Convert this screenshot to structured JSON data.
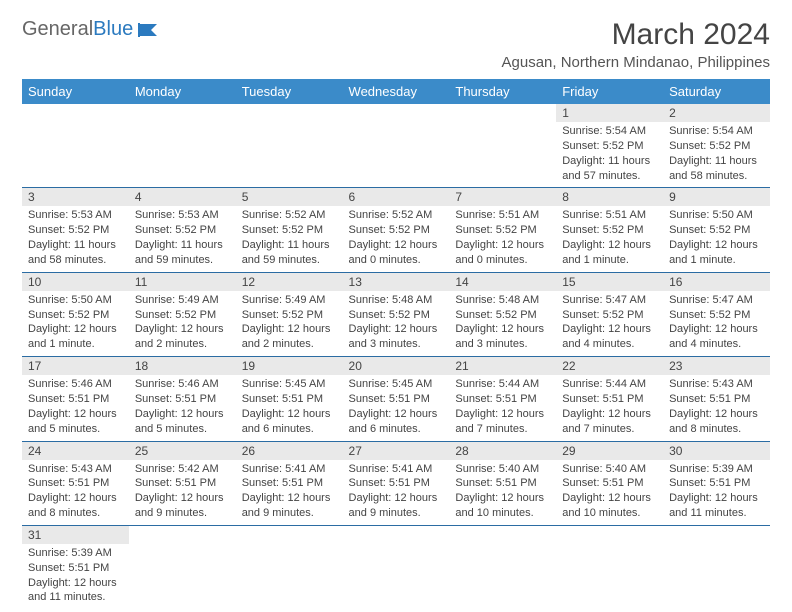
{
  "logo": {
    "general": "General",
    "blue": "Blue"
  },
  "title": "March 2024",
  "location": "Agusan, Northern Mindanao, Philippines",
  "dayHeaders": [
    "Sunday",
    "Monday",
    "Tuesday",
    "Wednesday",
    "Thursday",
    "Friday",
    "Saturday"
  ],
  "colors": {
    "headerBg": "#3b8bc9",
    "headerText": "#ffffff",
    "dayNumBg": "#e9e9e9",
    "borderColor": "#2b6ca3",
    "textColor": "#444444",
    "logoBlue": "#2b7abf"
  },
  "weeks": [
    [
      null,
      null,
      null,
      null,
      null,
      {
        "n": "1",
        "sr": "5:54 AM",
        "ss": "5:52 PM",
        "dl": "11 hours and 57 minutes."
      },
      {
        "n": "2",
        "sr": "5:54 AM",
        "ss": "5:52 PM",
        "dl": "11 hours and 58 minutes."
      }
    ],
    [
      {
        "n": "3",
        "sr": "5:53 AM",
        "ss": "5:52 PM",
        "dl": "11 hours and 58 minutes."
      },
      {
        "n": "4",
        "sr": "5:53 AM",
        "ss": "5:52 PM",
        "dl": "11 hours and 59 minutes."
      },
      {
        "n": "5",
        "sr": "5:52 AM",
        "ss": "5:52 PM",
        "dl": "11 hours and 59 minutes."
      },
      {
        "n": "6",
        "sr": "5:52 AM",
        "ss": "5:52 PM",
        "dl": "12 hours and 0 minutes."
      },
      {
        "n": "7",
        "sr": "5:51 AM",
        "ss": "5:52 PM",
        "dl": "12 hours and 0 minutes."
      },
      {
        "n": "8",
        "sr": "5:51 AM",
        "ss": "5:52 PM",
        "dl": "12 hours and 1 minute."
      },
      {
        "n": "9",
        "sr": "5:50 AM",
        "ss": "5:52 PM",
        "dl": "12 hours and 1 minute."
      }
    ],
    [
      {
        "n": "10",
        "sr": "5:50 AM",
        "ss": "5:52 PM",
        "dl": "12 hours and 1 minute."
      },
      {
        "n": "11",
        "sr": "5:49 AM",
        "ss": "5:52 PM",
        "dl": "12 hours and 2 minutes."
      },
      {
        "n": "12",
        "sr": "5:49 AM",
        "ss": "5:52 PM",
        "dl": "12 hours and 2 minutes."
      },
      {
        "n": "13",
        "sr": "5:48 AM",
        "ss": "5:52 PM",
        "dl": "12 hours and 3 minutes."
      },
      {
        "n": "14",
        "sr": "5:48 AM",
        "ss": "5:52 PM",
        "dl": "12 hours and 3 minutes."
      },
      {
        "n": "15",
        "sr": "5:47 AM",
        "ss": "5:52 PM",
        "dl": "12 hours and 4 minutes."
      },
      {
        "n": "16",
        "sr": "5:47 AM",
        "ss": "5:52 PM",
        "dl": "12 hours and 4 minutes."
      }
    ],
    [
      {
        "n": "17",
        "sr": "5:46 AM",
        "ss": "5:51 PM",
        "dl": "12 hours and 5 minutes."
      },
      {
        "n": "18",
        "sr": "5:46 AM",
        "ss": "5:51 PM",
        "dl": "12 hours and 5 minutes."
      },
      {
        "n": "19",
        "sr": "5:45 AM",
        "ss": "5:51 PM",
        "dl": "12 hours and 6 minutes."
      },
      {
        "n": "20",
        "sr": "5:45 AM",
        "ss": "5:51 PM",
        "dl": "12 hours and 6 minutes."
      },
      {
        "n": "21",
        "sr": "5:44 AM",
        "ss": "5:51 PM",
        "dl": "12 hours and 7 minutes."
      },
      {
        "n": "22",
        "sr": "5:44 AM",
        "ss": "5:51 PM",
        "dl": "12 hours and 7 minutes."
      },
      {
        "n": "23",
        "sr": "5:43 AM",
        "ss": "5:51 PM",
        "dl": "12 hours and 8 minutes."
      }
    ],
    [
      {
        "n": "24",
        "sr": "5:43 AM",
        "ss": "5:51 PM",
        "dl": "12 hours and 8 minutes."
      },
      {
        "n": "25",
        "sr": "5:42 AM",
        "ss": "5:51 PM",
        "dl": "12 hours and 9 minutes."
      },
      {
        "n": "26",
        "sr": "5:41 AM",
        "ss": "5:51 PM",
        "dl": "12 hours and 9 minutes."
      },
      {
        "n": "27",
        "sr": "5:41 AM",
        "ss": "5:51 PM",
        "dl": "12 hours and 9 minutes."
      },
      {
        "n": "28",
        "sr": "5:40 AM",
        "ss": "5:51 PM",
        "dl": "12 hours and 10 minutes."
      },
      {
        "n": "29",
        "sr": "5:40 AM",
        "ss": "5:51 PM",
        "dl": "12 hours and 10 minutes."
      },
      {
        "n": "30",
        "sr": "5:39 AM",
        "ss": "5:51 PM",
        "dl": "12 hours and 11 minutes."
      }
    ],
    [
      {
        "n": "31",
        "sr": "5:39 AM",
        "ss": "5:51 PM",
        "dl": "12 hours and 11 minutes."
      },
      null,
      null,
      null,
      null,
      null,
      null
    ]
  ],
  "labels": {
    "sunrise": "Sunrise: ",
    "sunset": "Sunset: ",
    "daylight": "Daylight: "
  }
}
